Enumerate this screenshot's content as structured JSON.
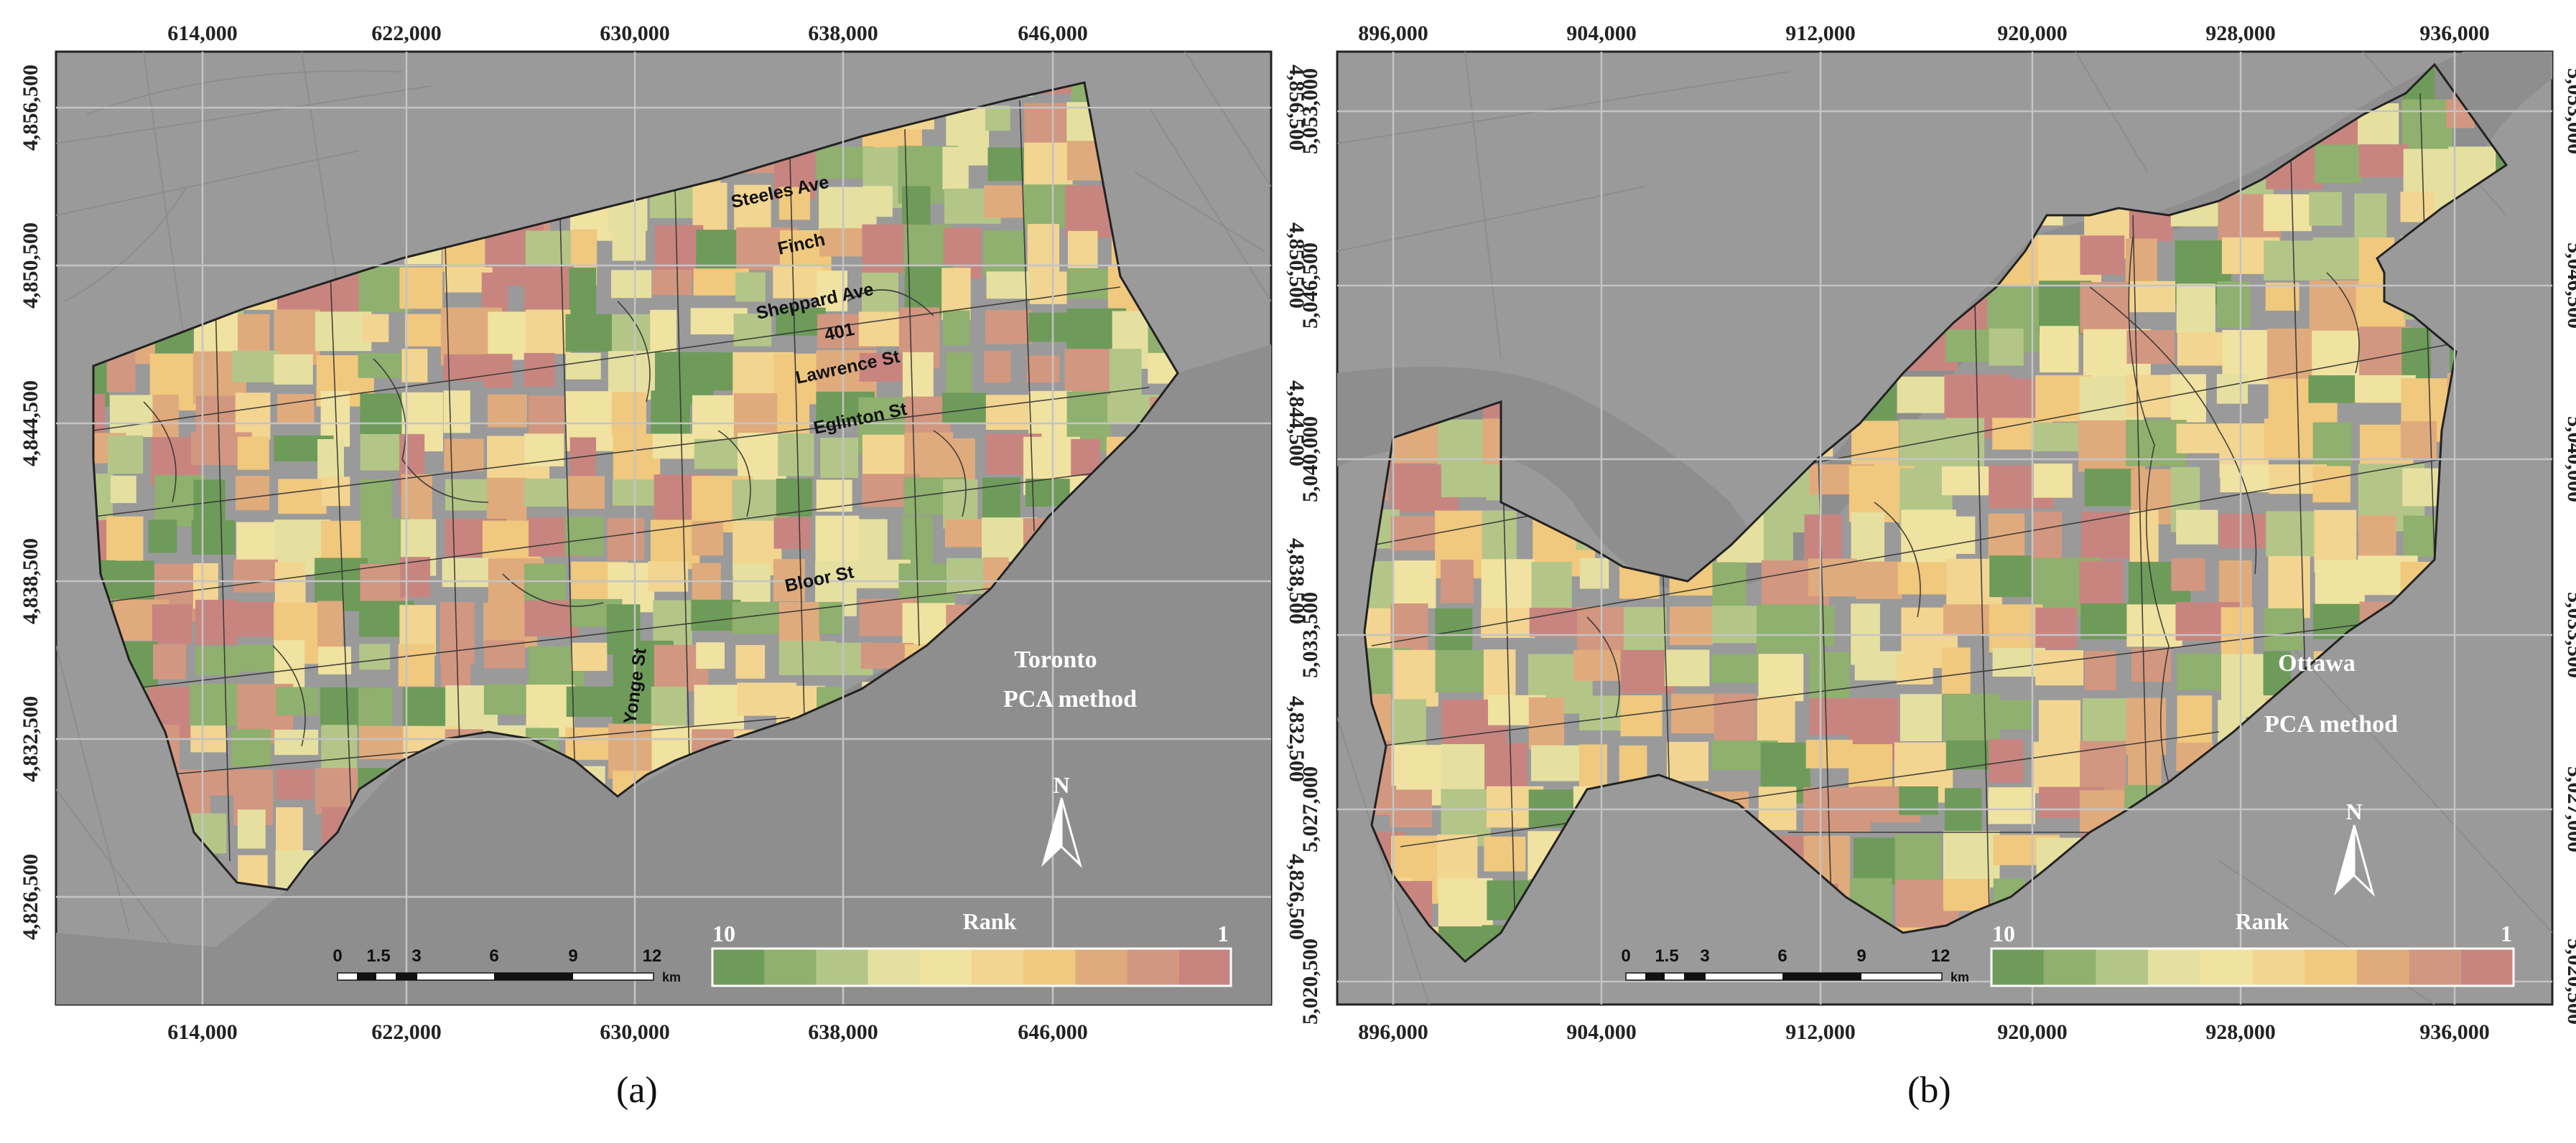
{
  "colors": {
    "frame_bg": "#9a9a9a",
    "water": "#8e8e8e",
    "grid": "#bfbfbf",
    "boundary": "#333333",
    "rank_ramp": [
      "#6e9b5a",
      "#8fb06e",
      "#b3c688",
      "#e6e0a0",
      "#f0e2a0",
      "#f2d590",
      "#f0c87e",
      "#e0ab7c",
      "#d29780",
      "#c88580"
    ]
  },
  "panel_a": {
    "caption": "(a)",
    "city": "Toronto",
    "method": "PCA method",
    "north": "N",
    "legend": {
      "title": "Rank",
      "high": "10",
      "low": "1"
    },
    "scale": {
      "labels": [
        "0",
        "1.5",
        "3",
        "6",
        "9",
        "12"
      ],
      "unit": "km"
    },
    "x_ticks": [
      "614,000",
      "622,000",
      "630,000",
      "638,000",
      "646,000"
    ],
    "y_ticks": [
      "4,856,500",
      "4,850,500",
      "4,844,500",
      "4,838,500",
      "4,832,500",
      "4,826,500"
    ],
    "roads": [
      "Steeles Ave",
      "Finch",
      "Sheppard Ave",
      "401",
      "Lawrence St",
      "Eglinton St",
      "Bloor St",
      "Yonge St"
    ]
  },
  "panel_b": {
    "caption": "(b)",
    "city": "Ottawa",
    "method": "PCA method",
    "north": "N",
    "legend": {
      "title": "Rank",
      "high": "10",
      "low": "1"
    },
    "scale": {
      "labels": [
        "0",
        "1.5",
        "3",
        "6",
        "9",
        "12"
      ],
      "unit": "km"
    },
    "x_ticks": [
      "896,000",
      "904,000",
      "912,000",
      "920,000",
      "928,000",
      "936,000"
    ],
    "y_ticks": [
      "5,053,000",
      "5,046,500",
      "5,040,000",
      "5,033,500",
      "5,027,000",
      "5,020,500"
    ]
  }
}
